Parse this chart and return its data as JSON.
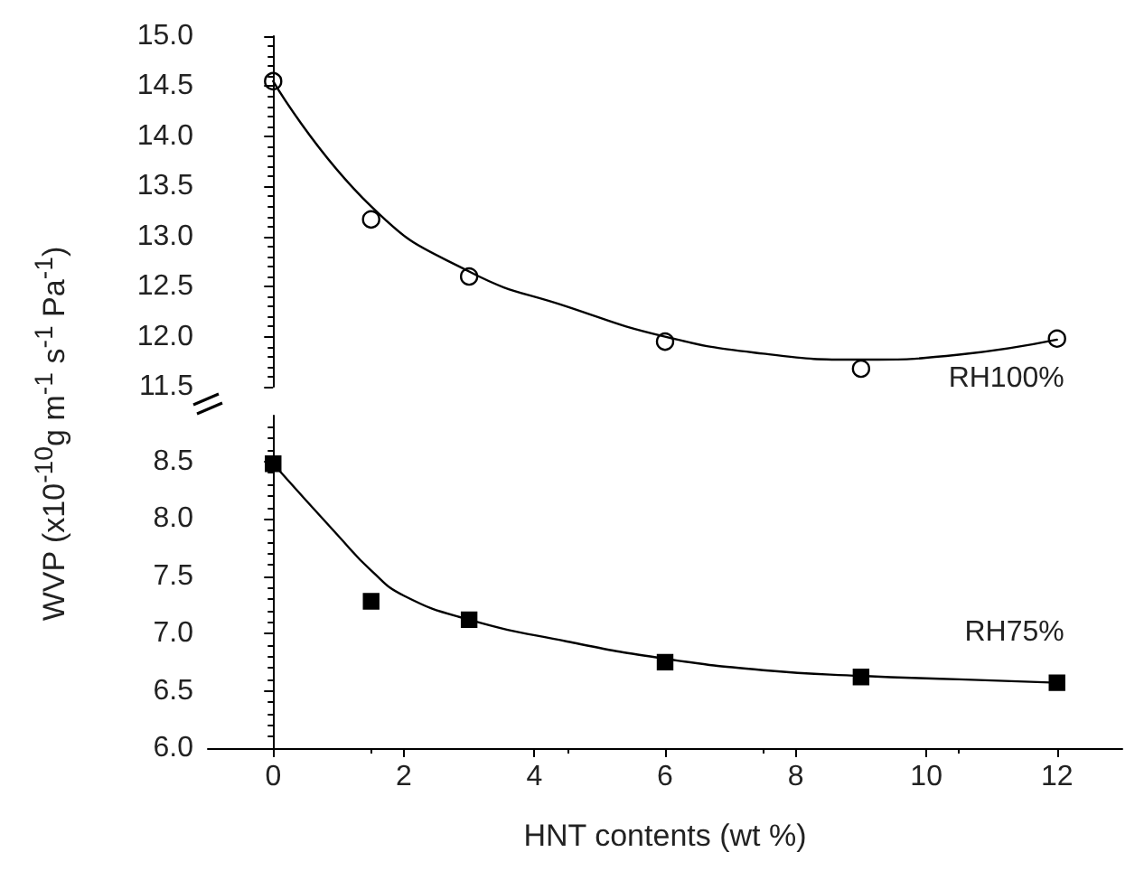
{
  "chart_data": [
    {
      "type": "scatter",
      "xlim": [
        0,
        12
      ],
      "xticks": [
        0,
        2,
        4,
        6,
        8,
        10,
        12
      ],
      "ylim": [
        11.5,
        15.0
      ],
      "yticks": [
        11.5,
        {
          "value": 12,
          "label": "12.0"
        },
        12.5,
        {
          "value": 13,
          "label": "13.0"
        },
        13.5,
        {
          "value": 14,
          "label": "14.0"
        },
        14.5,
        {
          "value": 15,
          "label": "15.0"
        }
      ],
      "tick_labels": "y",
      "annotations": [
        "RH100%"
      ],
      "series": [
        {
          "marker": "circle",
          "color": "#000000",
          "x": [
            0,
            1.5,
            3,
            6,
            9,
            12
          ],
          "values": [
            14.55,
            13.17,
            12.6,
            11.95,
            11.68,
            11.98
          ]
        },
        {
          "type": "line",
          "marker": "none",
          "color": "#000000",
          "x": [
            0,
            1.5,
            3,
            4.5,
            6,
            7.5,
            9,
            10.5,
            12
          ],
          "values": [
            14.55,
            13.3,
            12.65,
            12.3,
            12.0,
            11.83,
            11.77,
            11.82,
            11.97
          ]
        }
      ]
    },
    {
      "type": "scatter",
      "xlabel": "HNT contents (wt %)",
      "ylabel": "WVP (x10$^{-10}$g m$^{-1}$ s$^{-1}$ Pa$^{-1}$)",
      "xlim": [
        -1,
        13
      ],
      "xticks": [
        0,
        2,
        4,
        6,
        8,
        10,
        12
      ],
      "ylim": [
        6.0,
        8.9
      ],
      "yticks": [
        {
          "value": 6,
          "label": "6.0"
        },
        6.5,
        {
          "value": 7,
          "label": "7.0"
        },
        7.5,
        {
          "value": 8,
          "label": "8.0"
        },
        8.5
      ],
      "annotations": [
        "RH75%"
      ],
      "series": [
        {
          "marker": "square",
          "color": "#000000",
          "x": [
            0,
            1.5,
            3,
            6,
            9,
            12
          ],
          "values": [
            8.48,
            7.28,
            7.12,
            6.75,
            6.62,
            6.57
          ]
        },
        {
          "type": "line",
          "marker": "none",
          "color": "#000000",
          "x": [
            0,
            1,
            1.5,
            2,
            3,
            4.5,
            6,
            7.5,
            9,
            10.5,
            12
          ],
          "values": [
            8.48,
            7.85,
            7.55,
            7.33,
            7.12,
            6.93,
            6.78,
            6.68,
            6.63,
            6.6,
            6.57
          ]
        }
      ]
    }
  ]
}
